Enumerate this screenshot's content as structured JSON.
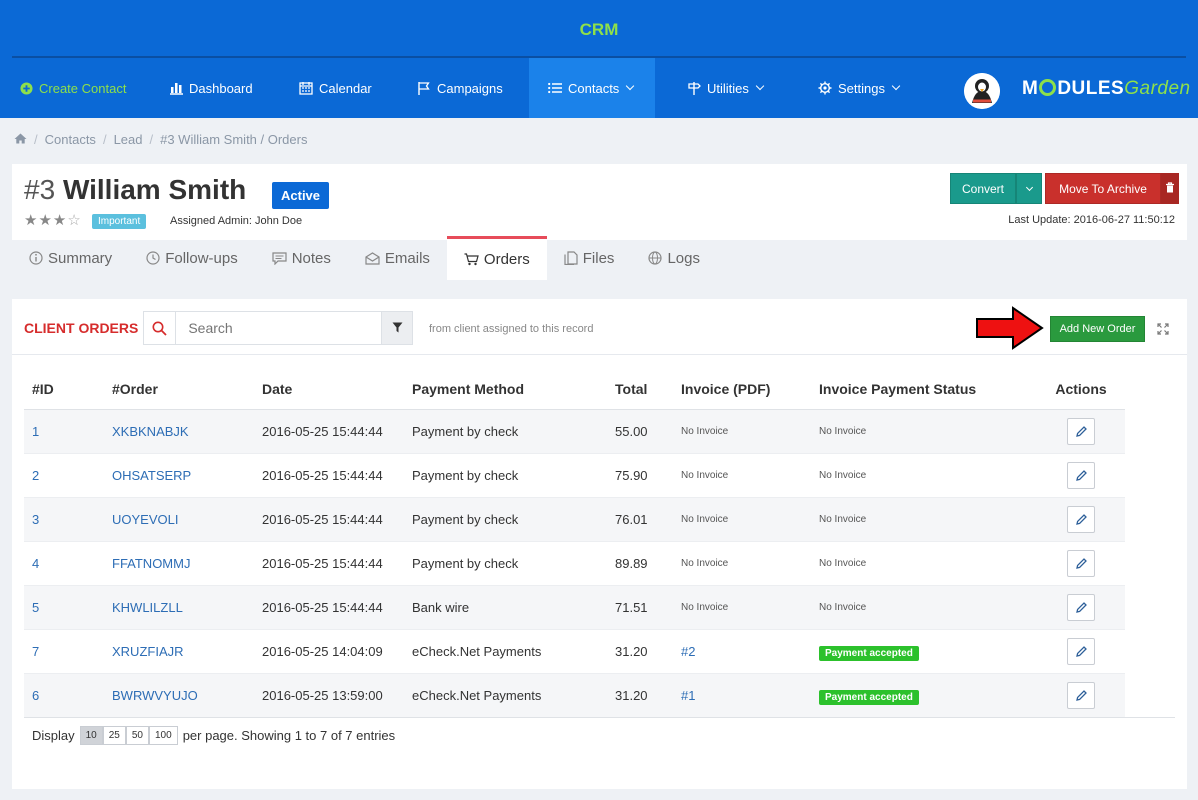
{
  "header": {
    "app_title": "CRM",
    "nav": [
      {
        "label": "Create Contact",
        "icon": "plus-circle-icon"
      },
      {
        "label": "Dashboard",
        "icon": "bar-chart-icon"
      },
      {
        "label": "Calendar",
        "icon": "calendar-icon"
      },
      {
        "label": "Campaigns",
        "icon": "flag-icon"
      },
      {
        "label": "Contacts",
        "icon": "list-icon"
      },
      {
        "label": "Utilities",
        "icon": "signpost-icon"
      },
      {
        "label": "Settings",
        "icon": "gear-icon"
      }
    ],
    "logo_text_bold": "M",
    "logo_text_rest": "DULES",
    "logo_text_italic": "Garden",
    "colors": {
      "bar": "#0b69d6",
      "accent": "#8ee04a",
      "active": "#1b82ea"
    }
  },
  "breadcrumb": [
    "Contacts",
    "Lead",
    "#3 William Smith / Orders"
  ],
  "record": {
    "number": "#3",
    "name": "William Smith",
    "status": "Active",
    "rating_filled": 3,
    "rating_max": 4,
    "tag": "Important",
    "assigned_admin": "Assigned Admin: John Doe",
    "last_update": "Last Update: 2016-06-27 11:50:12",
    "convert_label": "Convert",
    "archive_label": "Move To Archive"
  },
  "tabs": [
    {
      "label": "Summary",
      "icon": "info-icon"
    },
    {
      "label": "Follow-ups",
      "icon": "clock-icon"
    },
    {
      "label": "Notes",
      "icon": "comment-icon"
    },
    {
      "label": "Emails",
      "icon": "envelope-icon"
    },
    {
      "label": "Orders",
      "icon": "cart-icon"
    },
    {
      "label": "Files",
      "icon": "files-icon"
    },
    {
      "label": "Logs",
      "icon": "globe-icon"
    }
  ],
  "orders": {
    "title": "CLIENT ORDERS",
    "search_placeholder": "Search",
    "hint": "from client assigned to this record",
    "add_label": "Add New Order",
    "columns": [
      "#ID",
      "#Order",
      "Date",
      "Payment Method",
      "Total",
      "Invoice (PDF)",
      "Invoice Payment Status",
      "Actions"
    ],
    "rows": [
      {
        "id": "1",
        "order": "XKBKNABJK",
        "date": "2016-05-25 15:44:44",
        "method": "Payment by check",
        "total": "55.00",
        "invoice": "No Invoice",
        "status": "No Invoice",
        "paid": false
      },
      {
        "id": "2",
        "order": "OHSATSERP",
        "date": "2016-05-25 15:44:44",
        "method": "Payment by check",
        "total": "75.90",
        "invoice": "No Invoice",
        "status": "No Invoice",
        "paid": false
      },
      {
        "id": "3",
        "order": "UOYEVOLI",
        "date": "2016-05-25 15:44:44",
        "method": "Payment by check",
        "total": "76.01",
        "invoice": "No Invoice",
        "status": "No Invoice",
        "paid": false
      },
      {
        "id": "4",
        "order": "FFATNOMMJ",
        "date": "2016-05-25 15:44:44",
        "method": "Payment by check",
        "total": "89.89",
        "invoice": "No Invoice",
        "status": "No Invoice",
        "paid": false
      },
      {
        "id": "5",
        "order": "KHWLILZLL",
        "date": "2016-05-25 15:44:44",
        "method": "Bank wire",
        "total": "71.51",
        "invoice": "No Invoice",
        "status": "No Invoice",
        "paid": false
      },
      {
        "id": "7",
        "order": "XRUZFIAJR",
        "date": "2016-05-25 14:04:09",
        "method": "eCheck.Net Payments",
        "total": "31.20",
        "invoice": "#2",
        "status": "Payment accepted",
        "paid": true
      },
      {
        "id": "6",
        "order": "BWRWVYUJO",
        "date": "2016-05-25 13:59:00",
        "method": "eCheck.Net Payments",
        "total": "31.20",
        "invoice": "#1",
        "status": "Payment accepted",
        "paid": true
      }
    ],
    "footer": {
      "display_label": "Display",
      "page_sizes": [
        "10",
        "25",
        "50",
        "100"
      ],
      "selected_size": "10",
      "summary": "per page. Showing 1 to 7 of 7 entries"
    }
  }
}
